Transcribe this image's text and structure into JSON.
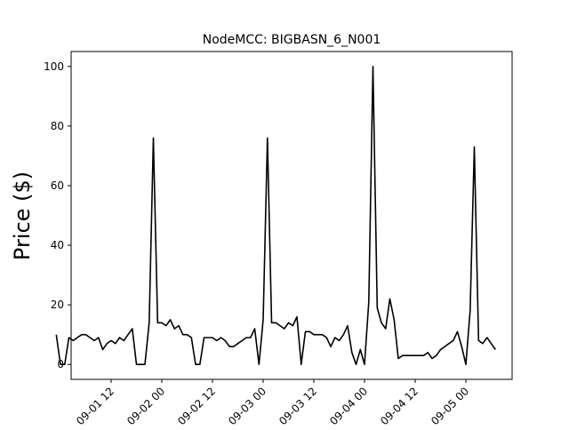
{
  "chart_data": {
    "type": "line",
    "title": "NodeMCC: BIGBASN_6_N001",
    "xlabel": "",
    "ylabel": "Price ($)",
    "ylim": [
      -5,
      105
    ],
    "xlim": [
      "2019-08-31 21:30",
      "2019-05-05 17:00"
    ],
    "x_tick_labels": [
      "09-01 12",
      "09-02 00",
      "09-02 12",
      "09-03 00",
      "09-03 12",
      "09-04 00",
      "09-04 12",
      "09-05 00"
    ],
    "y_ticks": [
      0,
      20,
      40,
      60,
      80,
      100
    ],
    "grid": false,
    "line_color": "#000000",
    "series": [
      {
        "x": [
          "2019-08-31 23:00",
          "2019-09-01 00:00",
          "2019-09-01 01:00",
          "2019-09-01 02:00",
          "2019-09-01 03:00",
          "2019-09-01 04:00",
          "2019-09-01 05:00",
          "2019-09-01 06:00",
          "2019-09-01 07:00",
          "2019-09-01 08:00",
          "2019-09-01 09:00",
          "2019-09-01 10:00",
          "2019-09-01 11:00",
          "2019-09-01 12:00",
          "2019-09-01 13:00",
          "2019-09-01 14:00",
          "2019-09-01 15:00",
          "2019-09-01 16:00",
          "2019-09-01 17:00",
          "2019-09-01 18:00",
          "2019-09-01 19:00",
          "2019-09-01 20:00",
          "2019-09-01 21:00",
          "2019-09-01 22:00",
          "2019-09-01 23:00",
          "2019-09-02 00:00",
          "2019-09-02 01:00",
          "2019-09-02 02:00",
          "2019-09-02 03:00",
          "2019-09-02 04:00",
          "2019-09-02 05:00",
          "2019-09-02 06:00",
          "2019-09-02 07:00",
          "2019-09-02 08:00",
          "2019-09-02 09:00",
          "2019-09-02 10:00",
          "2019-09-02 11:00",
          "2019-09-02 12:00",
          "2019-09-02 13:00",
          "2019-09-02 14:00",
          "2019-09-02 15:00",
          "2019-09-02 16:00",
          "2019-09-02 17:00",
          "2019-09-02 18:00",
          "2019-09-02 19:00",
          "2019-09-02 20:00",
          "2019-09-02 21:00",
          "2019-09-02 22:00",
          "2019-09-02 23:00",
          "2019-09-03 00:00",
          "2019-09-03 01:00",
          "2019-09-03 02:00",
          "2019-09-03 03:00",
          "2019-09-03 04:00",
          "2019-09-03 05:00",
          "2019-09-03 06:00",
          "2019-09-03 07:00",
          "2019-09-03 08:00",
          "2019-09-03 09:00",
          "2019-09-03 10:00",
          "2019-09-03 11:00",
          "2019-09-03 12:00",
          "2019-09-03 13:00",
          "2019-09-03 14:00",
          "2019-09-03 15:00",
          "2019-09-03 16:00",
          "2019-09-03 17:00",
          "2019-09-03 18:00",
          "2019-09-03 19:00",
          "2019-09-03 20:00",
          "2019-09-03 21:00",
          "2019-09-03 22:00",
          "2019-09-03 23:00",
          "2019-09-04 00:00",
          "2019-09-04 01:00",
          "2019-09-04 02:00",
          "2019-09-04 03:00",
          "2019-09-04 04:00",
          "2019-09-04 05:00",
          "2019-09-04 06:00",
          "2019-09-04 07:00",
          "2019-09-04 08:00",
          "2019-09-04 09:00",
          "2019-09-04 10:00",
          "2019-09-04 11:00",
          "2019-09-04 12:00",
          "2019-09-04 13:00",
          "2019-09-04 14:00",
          "2019-09-04 15:00",
          "2019-09-04 16:00",
          "2019-09-04 17:00",
          "2019-09-04 18:00",
          "2019-09-04 19:00",
          "2019-09-04 20:00",
          "2019-09-04 21:00",
          "2019-09-04 22:00",
          "2019-09-04 23:00",
          "2019-09-05 00:00",
          "2019-09-05 01:00",
          "2019-09-05 02:00",
          "2019-09-05 03:00",
          "2019-09-05 04:00",
          "2019-09-05 05:00",
          "2019-09-05 06:00",
          "2019-09-05 07:00"
        ],
        "values": [
          10,
          0,
          0,
          9,
          8,
          9,
          10,
          10,
          9,
          8,
          9,
          5,
          7,
          8,
          7,
          9,
          8,
          10,
          12,
          0,
          0,
          0,
          14,
          76,
          14,
          14,
          13,
          15,
          12,
          13,
          10,
          10,
          9,
          0,
          0,
          9,
          9,
          9,
          8,
          9,
          8,
          6,
          6,
          7,
          8,
          9,
          9,
          12,
          0,
          15,
          76,
          14,
          14,
          13,
          12,
          14,
          13,
          16,
          0,
          11,
          11,
          10,
          10,
          10,
          9,
          6,
          9,
          8,
          10,
          13,
          4,
          0,
          5,
          0,
          21,
          100,
          19,
          14,
          12,
          22,
          15,
          2,
          3,
          3,
          3,
          3,
          3,
          3,
          4,
          2,
          3,
          5,
          6,
          7,
          8,
          11,
          6,
          0,
          18,
          73,
          8,
          7,
          9,
          7,
          5
        ]
      }
    ]
  }
}
